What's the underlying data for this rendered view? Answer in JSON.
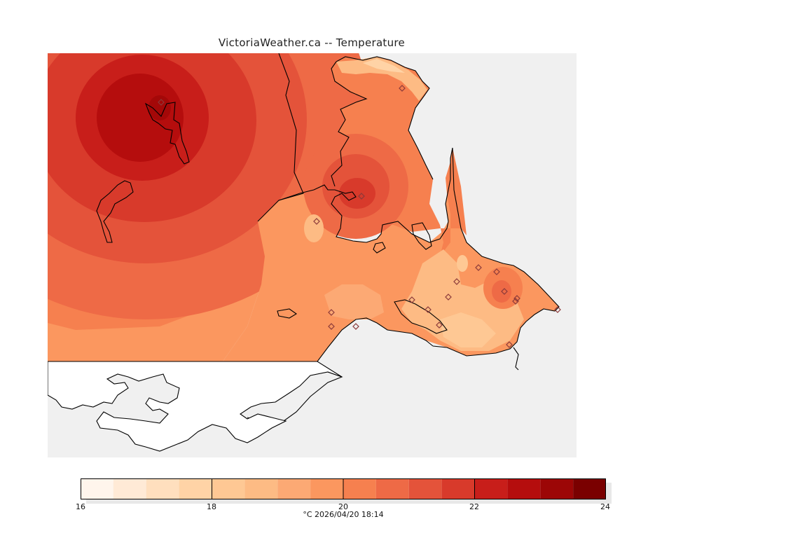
{
  "header": {
    "title": "VictoriaWeather.ca -- Temperature"
  },
  "legend": {
    "tick_labels": [
      "16",
      "18",
      "20",
      "22",
      "24"
    ],
    "caption": "°C  2026/04/20 18:14",
    "bands": [
      {
        "from": 16.0,
        "to": 16.5,
        "color": "#fff5ec"
      },
      {
        "from": 16.5,
        "to": 17.0,
        "color": "#ffead6"
      },
      {
        "from": 17.0,
        "to": 17.5,
        "color": "#ffdfbe"
      },
      {
        "from": 17.5,
        "to": 18.0,
        "color": "#ffd3a6"
      },
      {
        "from": 18.0,
        "to": 18.5,
        "color": "#fec894"
      },
      {
        "from": 18.5,
        "to": 19.0,
        "color": "#fdbb84"
      },
      {
        "from": 19.0,
        "to": 19.5,
        "color": "#fca974"
      },
      {
        "from": 19.5,
        "to": 20.0,
        "color": "#fb975f"
      },
      {
        "from": 20.0,
        "to": 20.5,
        "color": "#f6804f"
      },
      {
        "from": 20.5,
        "to": 21.0,
        "color": "#ee6a46"
      },
      {
        "from": 21.0,
        "to": 21.5,
        "color": "#e4533a"
      },
      {
        "from": 21.5,
        "to": 22.0,
        "color": "#d83a2b"
      },
      {
        "from": 22.0,
        "to": 22.5,
        "color": "#c81e1a"
      },
      {
        "from": 22.5,
        "to": 23.0,
        "color": "#b50d0d"
      },
      {
        "from": 23.0,
        "to": 23.5,
        "color": "#9c0606"
      },
      {
        "from": 23.5,
        "to": 24.0,
        "color": "#7a0000"
      }
    ]
  },
  "colors": {
    "water": "#f0f0f0",
    "coast": "#000000",
    "station_marker": "#8b3a3a"
  }
}
